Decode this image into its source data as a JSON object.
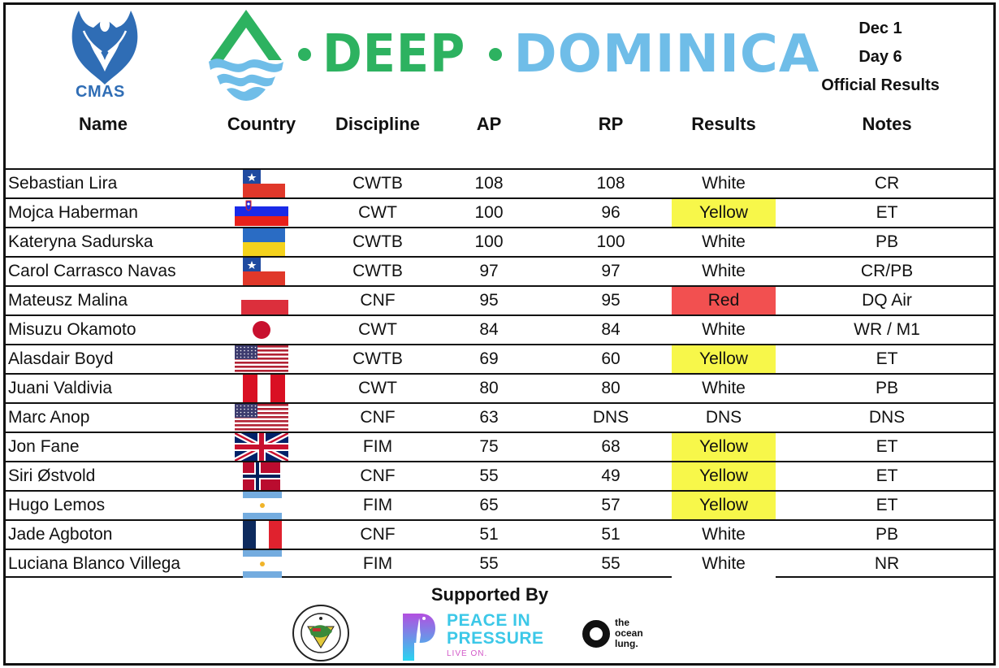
{
  "header": {
    "org_logo_text": "CMAS",
    "event_title_part1": "DEEP",
    "event_title_part2": "DOMINICA",
    "date": "Dec 1",
    "day": "Day 6",
    "subtitle": "Official Results",
    "colors": {
      "green": "#2db260",
      "light_blue": "#6fbde8",
      "cmas_blue": "#2f6db5"
    }
  },
  "table": {
    "columns": [
      "Name",
      "Country",
      "Discipline",
      "AP",
      "RP",
      "Results",
      "Notes"
    ],
    "rows": [
      {
        "name": "Sebastian Lira",
        "country": "Chile",
        "flag": "flag-chile",
        "discipline": "CWTB",
        "ap": "108",
        "rp": "108",
        "result": "White",
        "notes": "CR"
      },
      {
        "name": "Mojca Haberman",
        "country": "Slovenia",
        "flag": "flag-slovenia",
        "discipline": "CWT",
        "ap": "100",
        "rp": "96",
        "result": "Yellow",
        "notes": "ET"
      },
      {
        "name": "Kateryna Sadurska",
        "country": "Ukraine",
        "flag": "flag-ukraine",
        "discipline": "CWTB",
        "ap": "100",
        "rp": "100",
        "result": "White",
        "notes": "PB"
      },
      {
        "name": "Carol Carrasco Navas",
        "country": "Chile",
        "flag": "flag-chile",
        "discipline": "CWTB",
        "ap": "97",
        "rp": "97",
        "result": "White",
        "notes": "CR/PB"
      },
      {
        "name": "Mateusz Malina",
        "country": "Poland",
        "flag": "flag-poland",
        "discipline": "CNF",
        "ap": "95",
        "rp": "95",
        "result": "Red",
        "notes": "DQ Air"
      },
      {
        "name": "Misuzu Okamoto",
        "country": "Japan",
        "flag": "flag-japan",
        "discipline": "CWT",
        "ap": "84",
        "rp": "84",
        "result": "White",
        "notes": "WR / M1"
      },
      {
        "name": "Alasdair Boyd",
        "country": "USA",
        "flag": "flag-usa",
        "discipline": "CWTB",
        "ap": "69",
        "rp": "60",
        "result": "Yellow",
        "notes": "ET"
      },
      {
        "name": "Juani Valdivia",
        "country": "Peru",
        "flag": "flag-peru",
        "discipline": "CWT",
        "ap": "80",
        "rp": "80",
        "result": "White",
        "notes": "PB"
      },
      {
        "name": "Marc Anop",
        "country": "USA",
        "flag": "flag-usa",
        "discipline": "CNF",
        "ap": "63",
        "rp": "DNS",
        "result": "DNS",
        "notes": "DNS"
      },
      {
        "name": "Jon Fane",
        "country": "United Kingdom",
        "flag": "flag-uk",
        "discipline": "FIM",
        "ap": "75",
        "rp": "68",
        "result": "Yellow",
        "notes": "ET"
      },
      {
        "name": "Siri Østvold",
        "country": "Norway",
        "flag": "flag-norway",
        "discipline": "CNF",
        "ap": "55",
        "rp": "49",
        "result": "Yellow",
        "notes": "ET"
      },
      {
        "name": "Hugo Lemos",
        "country": "Argentina",
        "flag": "flag-argentina",
        "discipline": "FIM",
        "ap": "65",
        "rp": "57",
        "result": "Yellow",
        "notes": "ET"
      },
      {
        "name": "Jade Agboton",
        "country": "France",
        "flag": "flag-france",
        "discipline": "CNF",
        "ap": "51",
        "rp": "51",
        "result": "White",
        "notes": "PB"
      },
      {
        "name": "Luciana Blanco Villega",
        "country": "Argentina",
        "flag": "flag-argentina",
        "discipline": "FIM",
        "ap": "55",
        "rp": "55",
        "result": "White",
        "notes": "NR"
      }
    ],
    "result_colors": {
      "White": "#ffffff",
      "Yellow": "#f7f74a",
      "Red": "#f25050",
      "DNS": "#ffffff"
    }
  },
  "sponsors": {
    "title": "Supported By",
    "items": [
      {
        "name": "Nature Island Dive Dominica",
        "logo": "nature-island-dive-logo"
      },
      {
        "name": "Peace In Pressure",
        "line1": "PEACE IN",
        "line2": "PRESSURE",
        "tagline": "LIVE ON."
      },
      {
        "name": "the ocean lung.",
        "line1": "the",
        "line2": "ocean",
        "line3": "lung."
      }
    ]
  }
}
